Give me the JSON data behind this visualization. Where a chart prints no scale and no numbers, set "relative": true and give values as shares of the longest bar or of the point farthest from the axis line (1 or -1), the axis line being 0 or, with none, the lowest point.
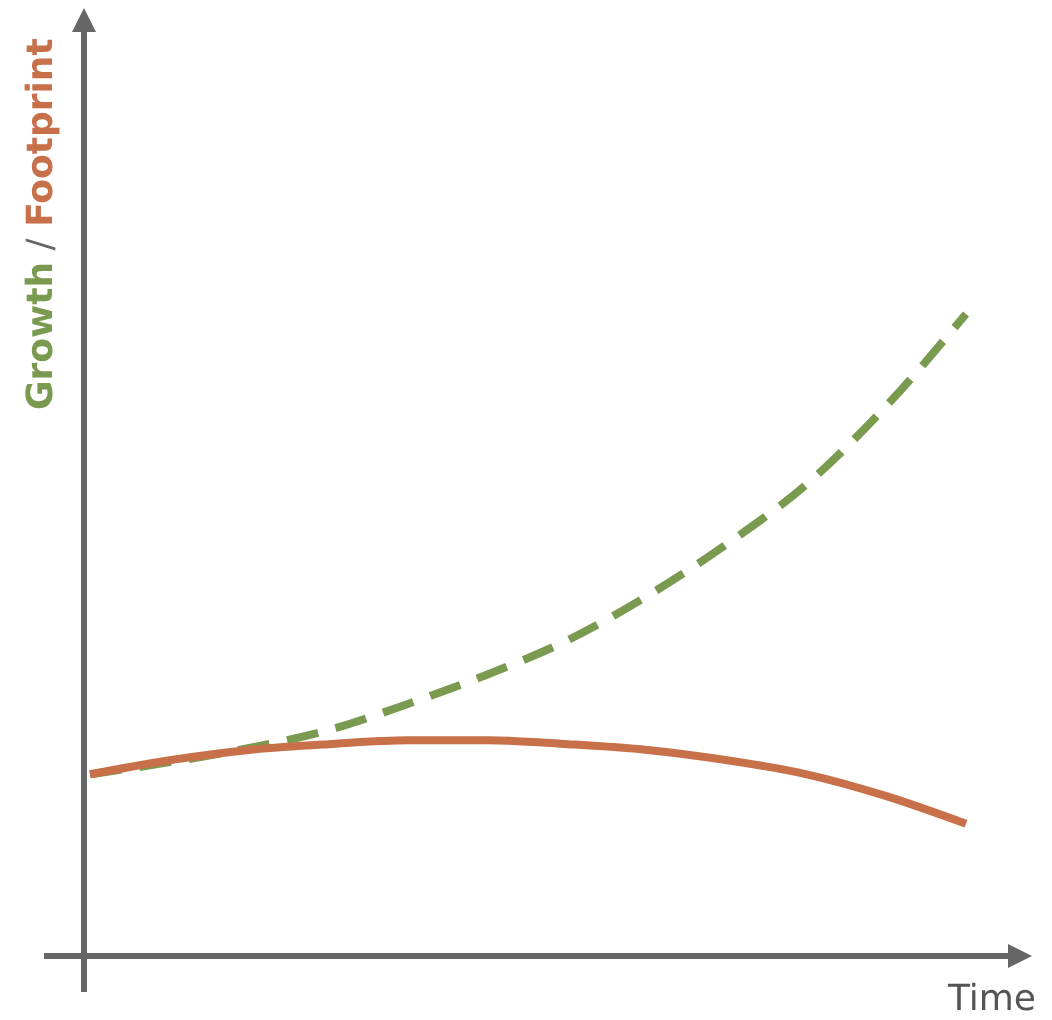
{
  "chart_data": {
    "type": "line",
    "relative": true,
    "xlabel": "Time",
    "ylabel": "Growth / Footprint",
    "categories": [
      null,
      null,
      null,
      null,
      null,
      null,
      null,
      null,
      null,
      null,
      null,
      null
    ],
    "series": [
      {
        "color": "#7a9a50",
        "line_style": "dashed",
        "values": [
          0.283,
          0.302,
          0.324,
          0.352,
          0.393,
          0.439,
          0.492,
          0.561,
          0.642,
          0.735,
          0.857,
          1
        ]
      },
      {
        "color": "#c8704a",
        "line_style": "solid",
        "values": [
          0.283,
          0.305,
          0.321,
          0.33,
          0.336,
          0.336,
          0.33,
          0.321,
          0.305,
          0.283,
          0.249,
          0.206
        ]
      }
    ]
  }
}
